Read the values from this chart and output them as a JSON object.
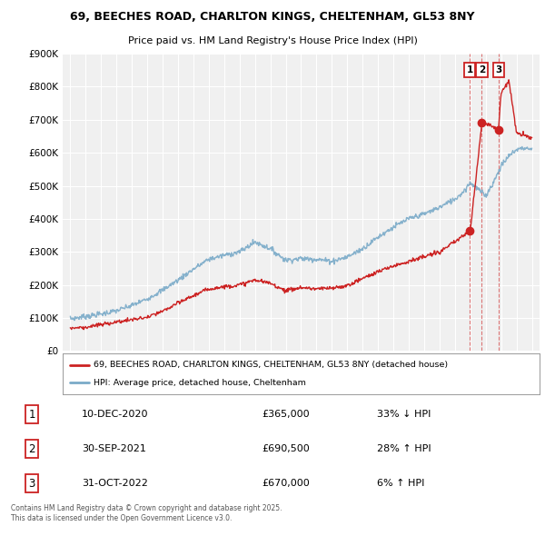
{
  "title": "69, BEECHES ROAD, CHARLTON KINGS, CHELTENHAM, GL53 8NY",
  "subtitle": "Price paid vs. HM Land Registry's House Price Index (HPI)",
  "legend_label_red": "69, BEECHES ROAD, CHARLTON KINGS, CHELTENHAM, GL53 8NY (detached house)",
  "legend_label_blue": "HPI: Average price, detached house, Cheltenham",
  "footer": "Contains HM Land Registry data © Crown copyright and database right 2025.\nThis data is licensed under the Open Government Licence v3.0.",
  "transactions": [
    {
      "num": "1",
      "date": "10-DEC-2020",
      "price": "£365,000",
      "hpi": "33% ↓ HPI",
      "year": 2020.95
    },
    {
      "num": "2",
      "date": "30-SEP-2021",
      "price": "£690,500",
      "hpi": "28% ↑ HPI",
      "year": 2021.75
    },
    {
      "num": "3",
      "date": "31-OCT-2022",
      "price": "£670,000",
      "hpi": "6% ↑ HPI",
      "year": 2022.83
    }
  ],
  "trans_years": [
    2020.95,
    2021.75,
    2022.83
  ],
  "trans_prices": [
    365000,
    690500,
    670000
  ],
  "hpi_years": [
    1995,
    1996,
    1997,
    1998,
    1999,
    2000,
    2001,
    2002,
    2003,
    2004,
    2005,
    2006,
    2007,
    2008,
    2009,
    2010,
    2011,
    2012,
    2013,
    2014,
    2015,
    2016,
    2017,
    2018,
    2019,
    2020,
    2020.5,
    2021,
    2021.5,
    2022,
    2022.5,
    2023,
    2023.5,
    2024,
    2024.5,
    2025
  ],
  "hpi_vals": [
    98000,
    105000,
    112000,
    122000,
    138000,
    158000,
    185000,
    215000,
    248000,
    278000,
    290000,
    300000,
    330000,
    310000,
    275000,
    280000,
    278000,
    272000,
    285000,
    310000,
    345000,
    375000,
    400000,
    415000,
    435000,
    460000,
    480000,
    510000,
    490000,
    470000,
    510000,
    560000,
    590000,
    610000,
    615000,
    610000
  ],
  "red_years": [
    1995,
    1996,
    1997,
    1998,
    1999,
    2000,
    2001,
    2002,
    2003,
    2004,
    2005,
    2006,
    2007,
    2008,
    2009,
    2010,
    2011,
    2012,
    2013,
    2014,
    2015,
    2016,
    2017,
    2018,
    2019,
    2020,
    2020.95,
    2021.0,
    2021.75,
    2022.0,
    2022.83,
    2023.0,
    2023.5,
    2024,
    2025
  ],
  "red_vals": [
    70000,
    72000,
    80000,
    88000,
    95000,
    102000,
    120000,
    145000,
    168000,
    188000,
    195000,
    200000,
    215000,
    205000,
    183000,
    192000,
    188000,
    190000,
    198000,
    220000,
    240000,
    258000,
    272000,
    285000,
    300000,
    330000,
    365000,
    365000,
    690500,
    690500,
    670000,
    780000,
    820000,
    660000,
    645000
  ],
  "ylim": [
    0,
    900000
  ],
  "yticks": [
    0,
    100000,
    200000,
    300000,
    400000,
    500000,
    600000,
    700000,
    800000,
    900000
  ],
  "xlim_min": 1994.5,
  "xlim_max": 2025.5,
  "background_color": "#ffffff",
  "plot_bg": "#f0f0f0",
  "grid_color": "#ffffff",
  "red_color": "#cc2222",
  "blue_color": "#7aaac8"
}
